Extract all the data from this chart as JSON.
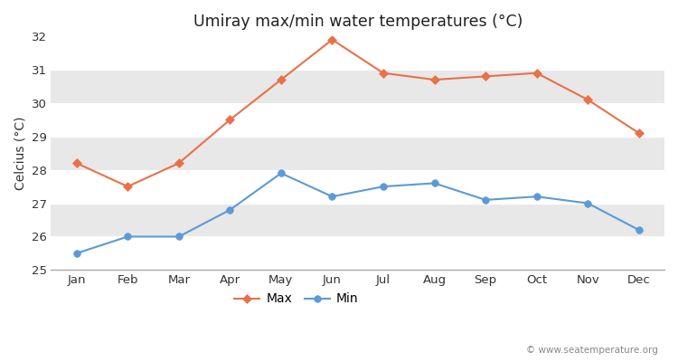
{
  "title": "Umiray max/min water temperatures (°C)",
  "ylabel": "Celcius (°C)",
  "months": [
    "Jan",
    "Feb",
    "Mar",
    "Apr",
    "May",
    "Jun",
    "Jul",
    "Aug",
    "Sep",
    "Oct",
    "Nov",
    "Dec"
  ],
  "max_temps": [
    28.2,
    27.5,
    28.2,
    29.5,
    30.7,
    31.9,
    30.9,
    30.7,
    30.8,
    30.9,
    30.1,
    29.1
  ],
  "min_temps": [
    25.5,
    26.0,
    26.0,
    26.8,
    27.9,
    27.2,
    27.5,
    27.6,
    27.1,
    27.2,
    27.0,
    26.2
  ],
  "max_color": "#e8714a",
  "min_color": "#5b9bd5",
  "fig_bg_color": "#ffffff",
  "band_colors": [
    "#ffffff",
    "#e8e8e8"
  ],
  "ylim": [
    25,
    32
  ],
  "yticks": [
    25,
    26,
    27,
    28,
    29,
    30,
    31,
    32
  ],
  "watermark": "© www.seatemperature.org",
  "legend_labels": [
    "Max",
    "Min"
  ]
}
